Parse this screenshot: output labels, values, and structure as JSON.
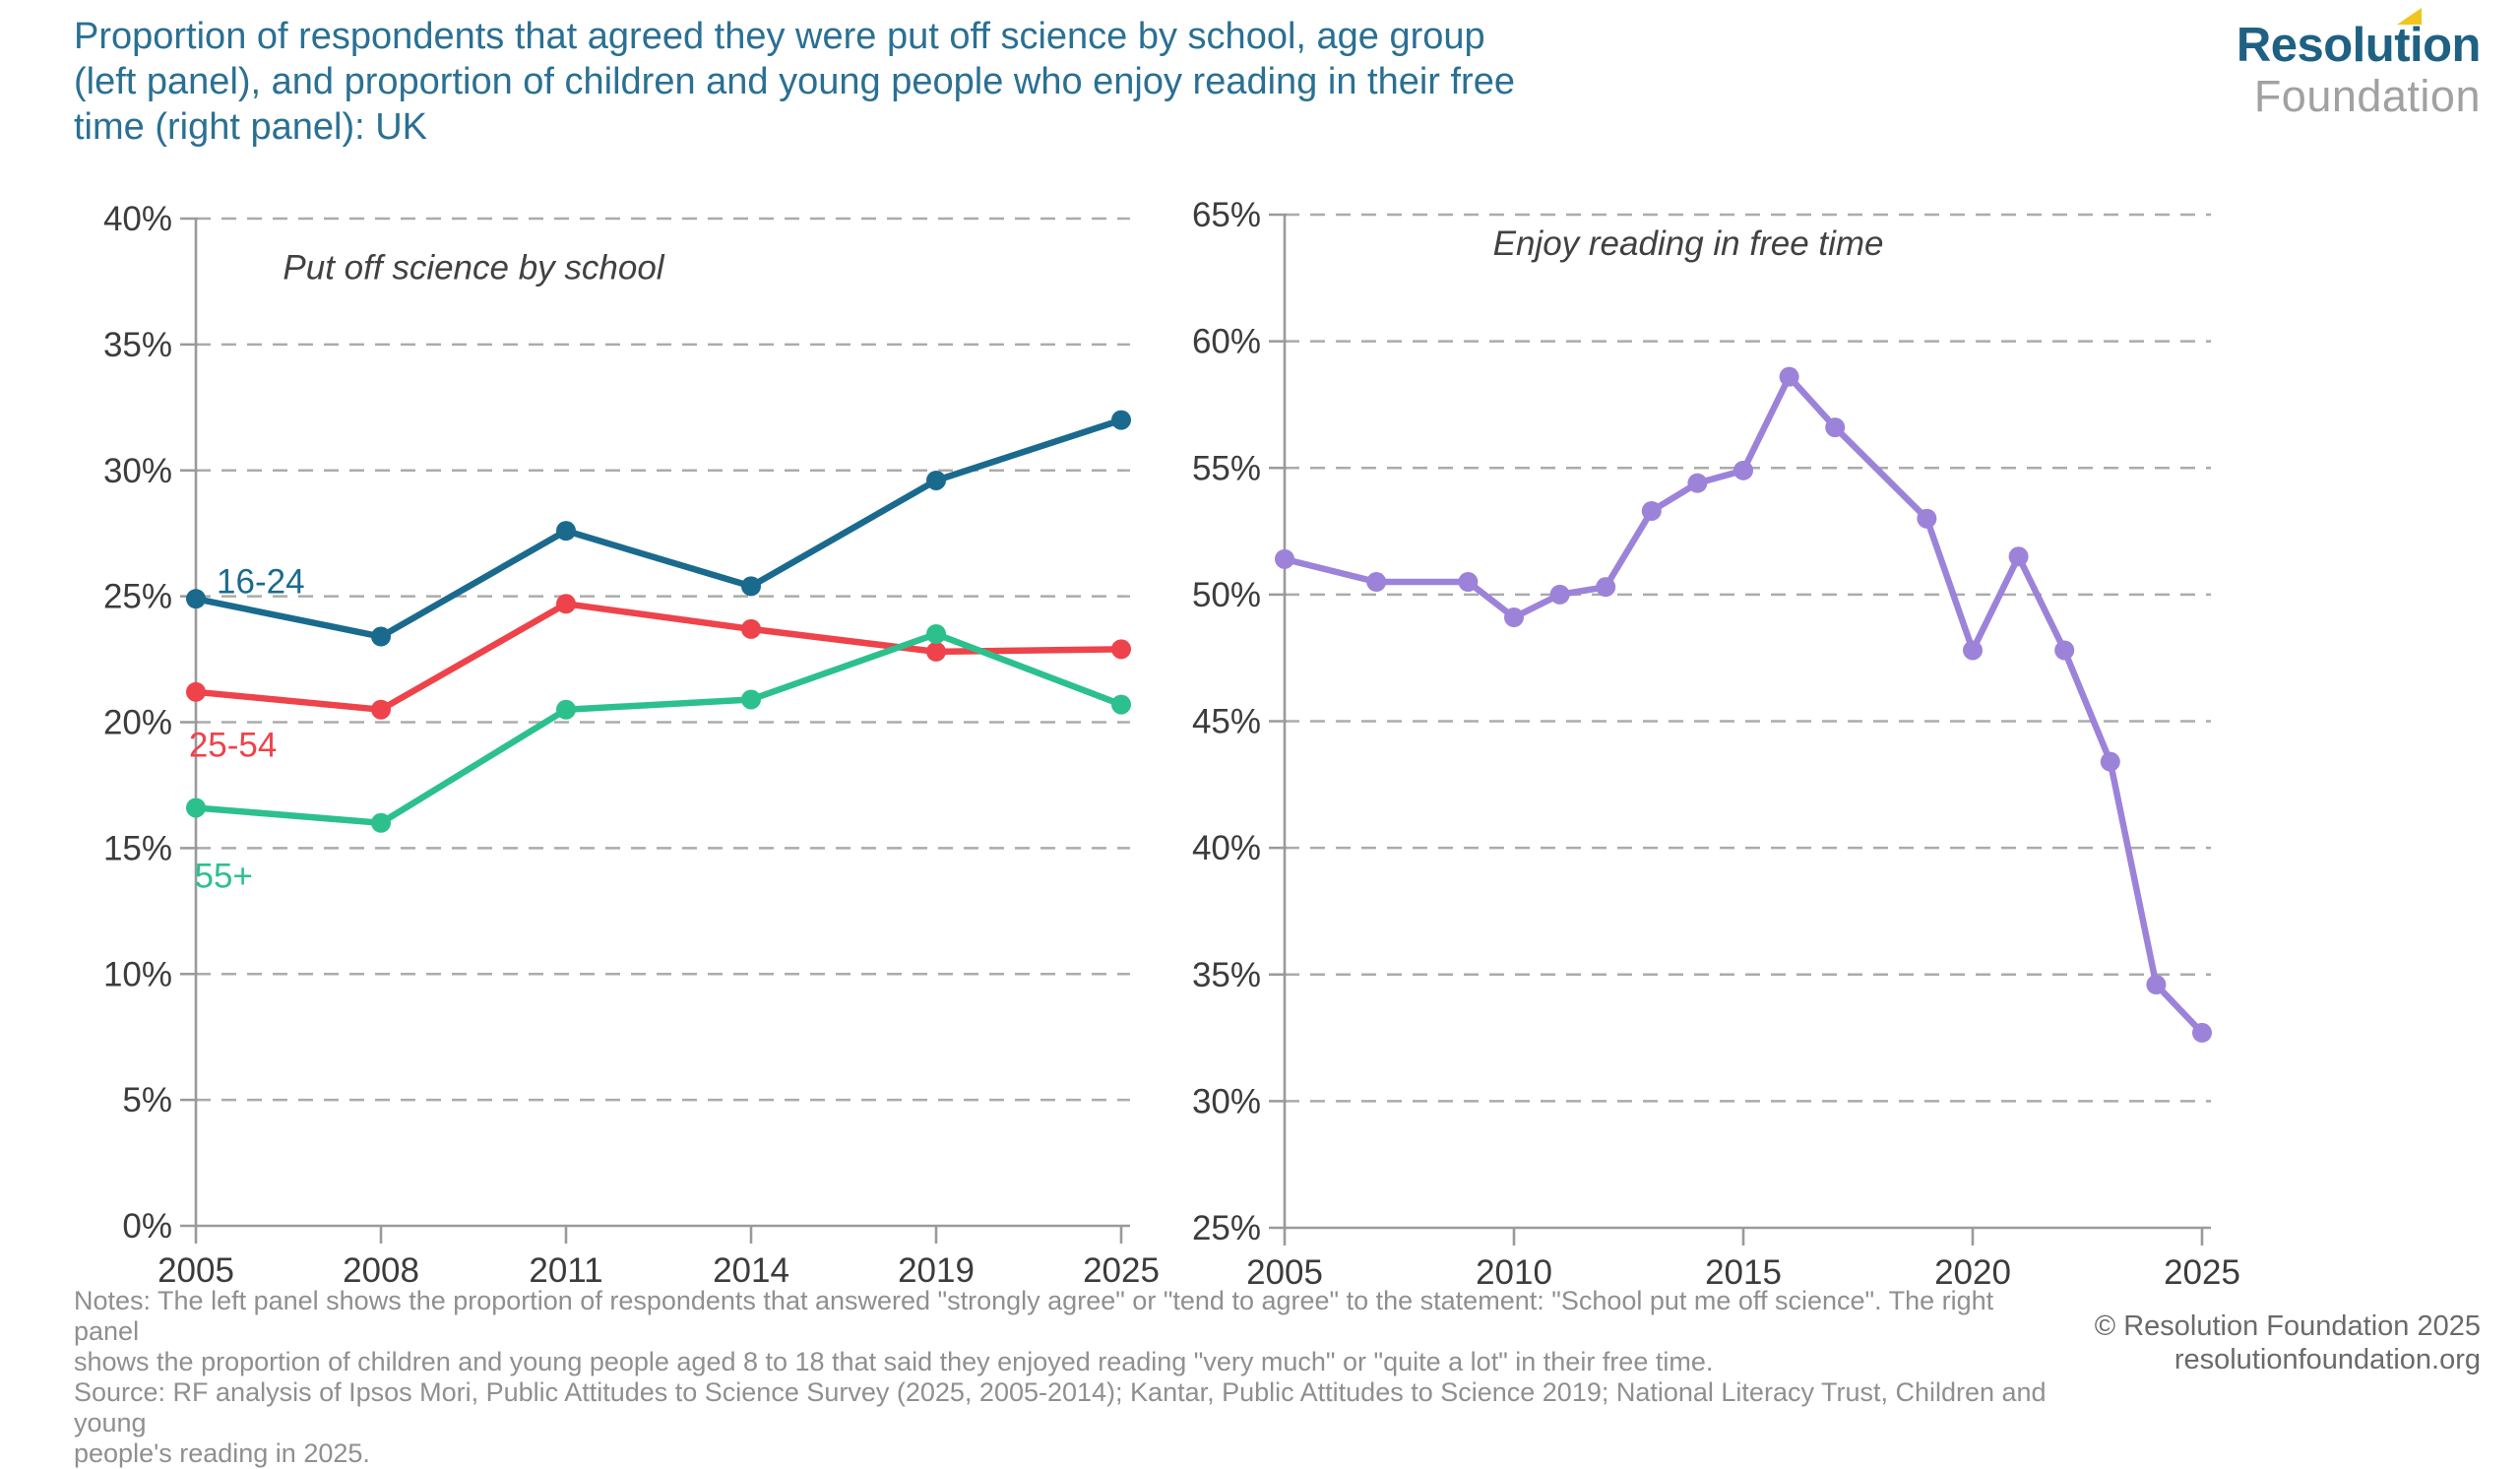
{
  "page": {
    "title_lines": [
      "Proportion of respondents that agreed they were put off science by school, age group",
      "(left panel), and proportion of children and young people who enjoy reading in their free",
      "time (right panel): UK"
    ],
    "logo": {
      "line1": "Resolution",
      "line2": "Foundation",
      "accent_icon": "yellow-triangle"
    },
    "notes_lines": [
      "Notes: The left panel shows the proportion of respondents that answered \"strongly agree\" or \"tend to agree\" to the statement: \"School put me off science\". The right panel",
      "shows the proportion of children and young people aged 8 to 18 that said they enjoyed reading \"very much\" or \"quite a lot\" in their free time.",
      "Source: RF analysis of Ipsos Mori, Public Attitudes to Science Survey (2025, 2005-2014); Kantar, Public Attitudes to Science 2019; National Literacy Trust, Children and young",
      "people's reading in 2025."
    ],
    "copyright": "© Resolution Foundation 2025",
    "website": "resolutionfoundation.org"
  },
  "colors": {
    "title_teal": "#2a7093",
    "logo_blue": "#1e6183",
    "logo_gray": "#a1a1a1",
    "logo_yellow": "#f2c51d",
    "axis_gray": "#9a9a9a",
    "gridline_gray": "#ababab",
    "tick_label": "#3c3c3c",
    "series_blue": "#1a6a8e",
    "series_red": "#ee434a",
    "series_green": "#2cc08d",
    "series_purple": "#9c83d9"
  },
  "chart_data": [
    {
      "type": "line",
      "panel": "left",
      "title": "Put off science by school",
      "x_type": "categorical",
      "categories": [
        "2005",
        "2008",
        "2011",
        "2014",
        "2019",
        "2025"
      ],
      "ylim": [
        0,
        40
      ],
      "yticks": [
        0,
        5,
        10,
        15,
        20,
        25,
        30,
        35,
        40
      ],
      "ytick_suffix": "%",
      "grid": "dashed-horizontal",
      "legend_position": "inline-labels",
      "series": [
        {
          "name": "16-24",
          "color": "#1a6a8e",
          "values": [
            24.9,
            23.4,
            27.6,
            25.4,
            29.6,
            32.0
          ],
          "label_pos": {
            "fx": 0.07,
            "y": 25.6
          }
        },
        {
          "name": "25-54",
          "color": "#ee434a",
          "values": [
            21.2,
            20.5,
            24.7,
            23.7,
            22.8,
            22.9
          ],
          "label_pos": {
            "fx": 0.04,
            "y": 19.1
          }
        },
        {
          "name": "55+",
          "color": "#2cc08d",
          "values": [
            16.6,
            16.0,
            20.5,
            20.9,
            23.5,
            20.7
          ],
          "label_pos": {
            "fx": 0.03,
            "y": 13.9
          }
        }
      ]
    },
    {
      "type": "line",
      "panel": "right",
      "title": "Enjoy reading in free time",
      "x_type": "numeric",
      "xlim": [
        2005,
        2025
      ],
      "xticks": [
        2005,
        2010,
        2015,
        2020,
        2025
      ],
      "ylim": [
        25,
        65
      ],
      "yticks": [
        25,
        30,
        35,
        40,
        45,
        50,
        55,
        60,
        65
      ],
      "ytick_suffix": "%",
      "grid": "dashed-horizontal",
      "legend_position": "none",
      "series": [
        {
          "name": "Enjoy reading in free time",
          "color": "#9c83d9",
          "x": [
            2005,
            2007,
            2009,
            2010,
            2011,
            2012,
            2013,
            2014,
            2015,
            2016,
            2017,
            2019,
            2020,
            2021,
            2022,
            2023,
            2024,
            2025
          ],
          "values": [
            51.4,
            50.5,
            50.5,
            49.1,
            50.0,
            50.3,
            53.3,
            54.4,
            54.9,
            58.6,
            56.6,
            53.0,
            47.8,
            51.5,
            47.8,
            43.4,
            34.6,
            32.7
          ]
        }
      ]
    }
  ]
}
